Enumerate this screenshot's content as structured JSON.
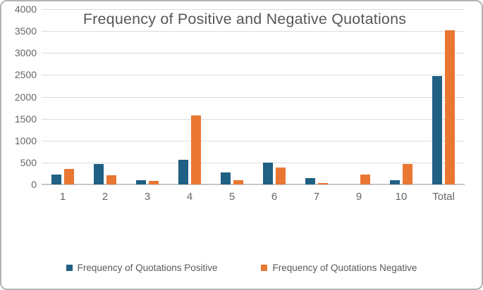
{
  "chart_data": {
    "type": "bar",
    "title": "Frequency of Positive and Negative Quotations",
    "categories": [
      "1",
      "2",
      "3",
      "4",
      "5",
      "6",
      "7",
      "9",
      "10",
      "Total"
    ],
    "series": [
      {
        "name": "Frequency of Quotations Positive",
        "color": "#1F6083",
        "values": [
          230,
          465,
          100,
          570,
          270,
          500,
          145,
          0,
          100,
          2470
        ]
      },
      {
        "name": "Frequency of Quotations Negative",
        "color": "#E97732",
        "values": [
          360,
          215,
          75,
          1580,
          90,
          390,
          25,
          220,
          470,
          3520
        ]
      }
    ],
    "xlabel": "",
    "ylabel": "",
    "ylim": [
      0,
      4000
    ],
    "ytick_interval": 500,
    "ytick_labels": [
      "0",
      "500",
      "1000",
      "1500",
      "2000",
      "2500",
      "3000",
      "3500",
      "4000"
    ],
    "grid": "horizontal",
    "legend_position": "bottom",
    "colors": {
      "title_text": "#575757",
      "axis_text": "#666666",
      "gridline": "#DCDCDC",
      "axis_line": "#C6C6C6",
      "chart_border": "#B3B3B3",
      "background": "#FFFFFF"
    }
  }
}
